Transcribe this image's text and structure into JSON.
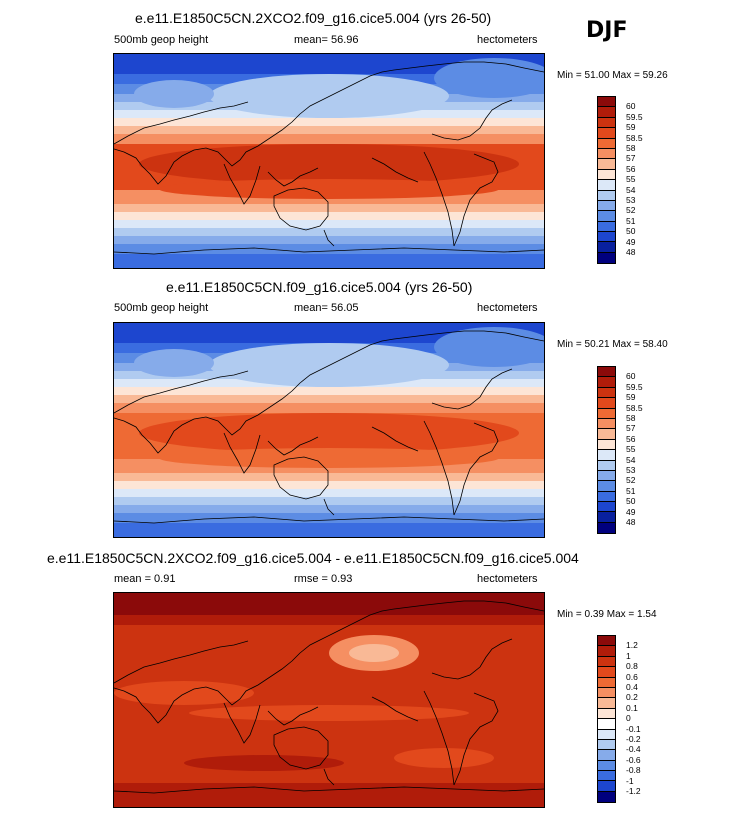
{
  "season": "DJF",
  "panels": [
    {
      "title": "e.e11.E1850C5CN.2XCO2.f09_g16.cice5.004 (yrs 26-50)",
      "left_label": "500mb geop height",
      "center_label": "mean=  56.96",
      "right_label": "hectometers",
      "minmax": "Min =  51.00 Max =  59.26",
      "kind": "abs",
      "shift": 0.9,
      "legend": {
        "labels": [
          "60",
          "59.5",
          "59",
          "58.5",
          "58",
          "57",
          "56",
          "55",
          "54",
          "53",
          "52",
          "51",
          "50",
          "49",
          "48"
        ],
        "colors": [
          "#8b0a0a",
          "#b01c0a",
          "#cc3310",
          "#e2491c",
          "#ee6a34",
          "#f58f62",
          "#f9b996",
          "#fde5d6",
          "#dce8f8",
          "#b0cbf0",
          "#86abea",
          "#5c8ce4",
          "#3a6ce0",
          "#1d46cf",
          "#08209e",
          "#00007e"
        ]
      }
    },
    {
      "title": "e.e11.E1850C5CN.f09_g16.cice5.004 (yrs 26-50)",
      "left_label": "500mb geop height",
      "center_label": "mean=  56.05",
      "right_label": "hectometers",
      "minmax": "Min =  50.21 Max =  58.40",
      "kind": "abs",
      "shift": 0,
      "legend": {
        "labels": [
          "60",
          "59.5",
          "59",
          "58.5",
          "58",
          "57",
          "56",
          "55",
          "54",
          "53",
          "52",
          "51",
          "50",
          "49",
          "48"
        ],
        "colors": [
          "#8b0a0a",
          "#b01c0a",
          "#cc3310",
          "#e2491c",
          "#ee6a34",
          "#f58f62",
          "#f9b996",
          "#fde5d6",
          "#dce8f8",
          "#b0cbf0",
          "#86abea",
          "#5c8ce4",
          "#3a6ce0",
          "#1d46cf",
          "#08209e",
          "#00007e"
        ]
      }
    },
    {
      "title": "e.e11.E1850C5CN.2XCO2.f09_g16.cice5.004 - e.e11.E1850C5CN.f09_g16.cice5.004",
      "left_label": "mean =   0.91",
      "center_label": "rmse =   0.93",
      "right_label": "hectometers",
      "minmax": "Min =  0.39 Max =   1.54",
      "kind": "diff",
      "legend": {
        "labels": [
          "1.2",
          "1",
          "0.8",
          "0.6",
          "0.4",
          "0.2",
          "0.1",
          "0",
          "-0.1",
          "-0.2",
          "-0.4",
          "-0.6",
          "-0.8",
          "-1",
          "-1.2"
        ],
        "colors": [
          "#8b0a0a",
          "#b01c0a",
          "#cc3310",
          "#e2491c",
          "#ee6a34",
          "#f58f62",
          "#f9b996",
          "#fde5d6",
          "#ffffff",
          "#dce8f8",
          "#b0cbf0",
          "#86abea",
          "#5c8ce4",
          "#3a6ce0",
          "#1d46cf",
          "#00007e"
        ]
      }
    }
  ]
}
